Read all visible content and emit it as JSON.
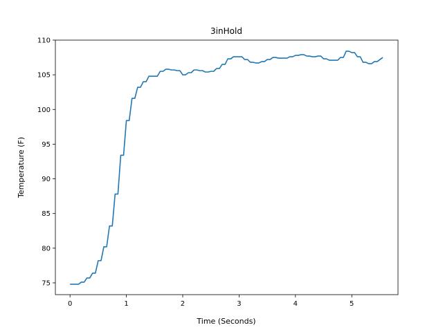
{
  "chart_data": {
    "type": "line",
    "title": "3inHold",
    "xlabel": "Time (Seconds)",
    "ylabel": "Temperature (F)",
    "xlim": [
      -0.26,
      5.82
    ],
    "ylim": [
      73.3,
      110.0
    ],
    "xticks": [
      0,
      1,
      2,
      3,
      4,
      5
    ],
    "yticks": [
      75,
      80,
      85,
      90,
      95,
      100,
      105,
      110
    ],
    "grid": false,
    "step_mode": "pre",
    "line_color": "#1f77b4",
    "series": [
      {
        "x": [
          0.0,
          0.05,
          0.1,
          0.15,
          0.2,
          0.25,
          0.3,
          0.35,
          0.4,
          0.45,
          0.5,
          0.55,
          0.6,
          0.65,
          0.7,
          0.75,
          0.8,
          0.85,
          0.9,
          0.95,
          1.0,
          1.05,
          1.1,
          1.15,
          1.2,
          1.25,
          1.3,
          1.35,
          1.4,
          1.45,
          1.5,
          1.55,
          1.6,
          1.65,
          1.7,
          1.75,
          1.8,
          1.85,
          1.9,
          1.95,
          2.0,
          2.05,
          2.1,
          2.15,
          2.2,
          2.25,
          2.3,
          2.35,
          2.4,
          2.45,
          2.5,
          2.55,
          2.6,
          2.65,
          2.7,
          2.75,
          2.8,
          2.85,
          2.9,
          2.95,
          3.0,
          3.05,
          3.1,
          3.15,
          3.2,
          3.25,
          3.3,
          3.35,
          3.4,
          3.45,
          3.5,
          3.55,
          3.6,
          3.65,
          3.7,
          3.75,
          3.8,
          3.85,
          3.9,
          3.95,
          4.0,
          4.05,
          4.1,
          4.15,
          4.2,
          4.25,
          4.3,
          4.35,
          4.4,
          4.45,
          4.5,
          4.55,
          4.6,
          4.65,
          4.7,
          4.75,
          4.8,
          4.85,
          4.9,
          4.95,
          5.0,
          5.05,
          5.1,
          5.15,
          5.2,
          5.25,
          5.3,
          5.35,
          5.4,
          5.45,
          5.5,
          5.55
        ],
        "values": [
          74.8,
          74.8,
          74.8,
          74.8,
          75.1,
          75.1,
          75.7,
          75.7,
          76.4,
          76.4,
          78.2,
          78.2,
          80.2,
          80.2,
          83.2,
          83.2,
          87.8,
          87.8,
          93.4,
          93.4,
          98.4,
          98.4,
          101.6,
          101.6,
          103.2,
          103.2,
          104.0,
          104.0,
          104.8,
          104.8,
          104.8,
          104.8,
          105.5,
          105.5,
          105.8,
          105.8,
          105.7,
          105.7,
          105.6,
          105.6,
          105.0,
          105.0,
          105.3,
          105.3,
          105.7,
          105.7,
          105.6,
          105.6,
          105.4,
          105.4,
          105.5,
          105.5,
          105.9,
          105.9,
          106.5,
          106.5,
          107.3,
          107.3,
          107.6,
          107.6,
          107.6,
          107.6,
          107.2,
          107.2,
          106.8,
          106.8,
          106.7,
          106.7,
          106.9,
          106.9,
          107.2,
          107.2,
          107.5,
          107.5,
          107.4,
          107.4,
          107.4,
          107.4,
          107.6,
          107.6,
          107.8,
          107.8,
          107.9,
          107.9,
          107.7,
          107.7,
          107.6,
          107.6,
          107.7,
          107.7,
          107.3,
          107.3,
          107.1,
          107.1,
          107.1,
          107.1,
          107.5,
          107.5,
          108.4,
          108.4,
          108.2,
          108.2,
          107.6,
          107.6,
          106.8,
          106.8,
          106.6,
          106.6,
          106.9,
          106.9,
          107.2,
          107.5
        ]
      }
    ]
  }
}
